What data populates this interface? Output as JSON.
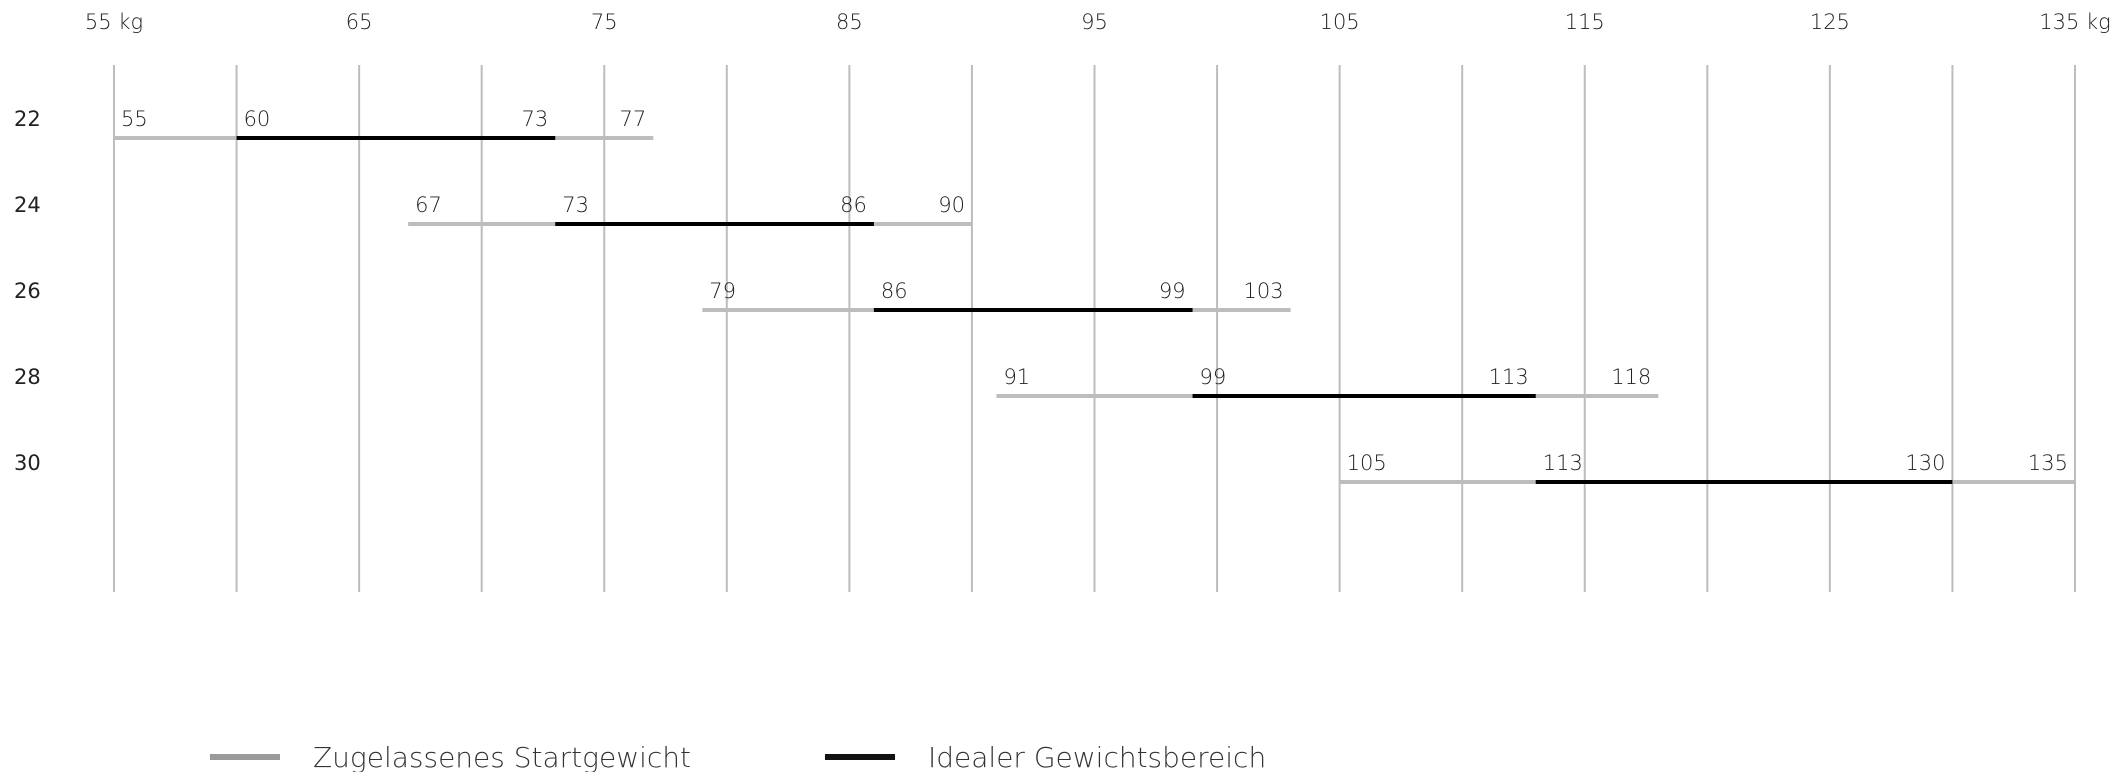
{
  "chart_data": {
    "type": "range-bar",
    "x_ticks": [
      "55 kg",
      "65",
      "75",
      "85",
      "95",
      "105",
      "115",
      "125",
      "135 kg"
    ],
    "xlim": [
      55,
      135
    ],
    "grid_step": 5,
    "grid": true,
    "rows": [
      {
        "label": "22",
        "allowed": [
          55,
          77
        ],
        "ideal": [
          60,
          73
        ]
      },
      {
        "label": "24",
        "allowed": [
          67,
          90
        ],
        "ideal": [
          73,
          86
        ]
      },
      {
        "label": "26",
        "allowed": [
          79,
          103
        ],
        "ideal": [
          86,
          99
        ]
      },
      {
        "label": "28",
        "allowed": [
          91,
          118
        ],
        "ideal": [
          99,
          113
        ]
      },
      {
        "label": "30",
        "allowed": [
          105,
          135
        ],
        "ideal": [
          113,
          130
        ]
      }
    ],
    "legend": [
      {
        "key": "allowed",
        "label": "Zugelassenes Startgewicht",
        "color": "#9a9a9a"
      },
      {
        "key": "ideal",
        "label": "Idealer Gewichtsbereich",
        "color": "#111111"
      }
    ],
    "legend_position": "bottom-left",
    "colors": {
      "grid": "#bdbdbd",
      "allowed": "#bdbdbd",
      "ideal": "#000000"
    }
  }
}
